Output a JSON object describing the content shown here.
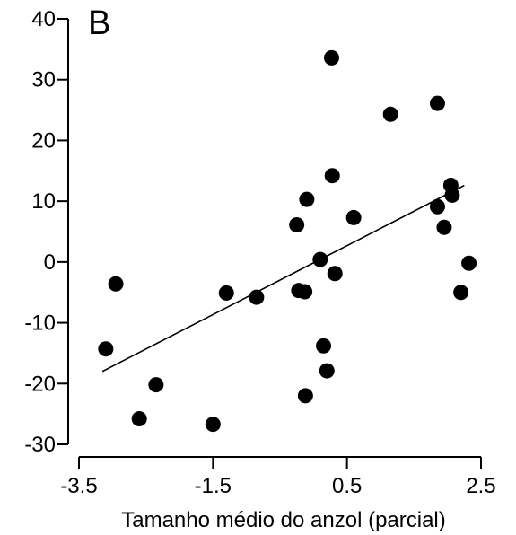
{
  "chart_data": {
    "type": "scatter",
    "panel_label": "B",
    "title": "",
    "xlabel": "Tamanho médio do anzol (parcial)",
    "ylabel": "",
    "xlim": [
      -3.5,
      2.5
    ],
    "ylim": [
      -30,
      40
    ],
    "x_ticks": [
      -3.5,
      -1.5,
      0.5,
      2.5
    ],
    "x_tick_labels": [
      "-3.5",
      "-1.5",
      "0.5",
      "2.5"
    ],
    "y_ticks": [
      -30,
      -20,
      -10,
      0,
      10,
      20,
      30,
      40
    ],
    "y_tick_labels": [
      "-30",
      "-20",
      "-10",
      "0",
      "10",
      "20",
      "30",
      "40"
    ],
    "grid": false,
    "legend": "none",
    "point_color": "#000000",
    "points": [
      {
        "x": -3.1,
        "y": -14.3
      },
      {
        "x": -2.95,
        "y": -3.6
      },
      {
        "x": -2.6,
        "y": -25.8
      },
      {
        "x": -2.35,
        "y": -20.2
      },
      {
        "x": -1.5,
        "y": -26.7
      },
      {
        "x": -1.3,
        "y": -5.1
      },
      {
        "x": -0.85,
        "y": -5.8
      },
      {
        "x": -0.25,
        "y": 6.1
      },
      {
        "x": -0.22,
        "y": -4.7
      },
      {
        "x": -0.13,
        "y": -4.9
      },
      {
        "x": -0.1,
        "y": 10.3
      },
      {
        "x": -0.12,
        "y": -22.0
      },
      {
        "x": 0.1,
        "y": 0.4
      },
      {
        "x": 0.15,
        "y": -13.8
      },
      {
        "x": 0.2,
        "y": -17.9
      },
      {
        "x": 0.27,
        "y": 33.6
      },
      {
        "x": 0.28,
        "y": 14.2
      },
      {
        "x": 0.32,
        "y": -1.9
      },
      {
        "x": 0.6,
        "y": 7.3
      },
      {
        "x": 1.15,
        "y": 24.3
      },
      {
        "x": 1.85,
        "y": 26.1
      },
      {
        "x": 1.85,
        "y": 9.1
      },
      {
        "x": 1.95,
        "y": 5.7
      },
      {
        "x": 2.05,
        "y": 12.6
      },
      {
        "x": 2.07,
        "y": 11.0
      },
      {
        "x": 2.2,
        "y": -5.0
      },
      {
        "x": 2.32,
        "y": -0.2
      }
    ],
    "fit_line": {
      "x": [
        -3.15,
        2.25
      ],
      "y": [
        -18.0,
        12.6
      ]
    }
  }
}
